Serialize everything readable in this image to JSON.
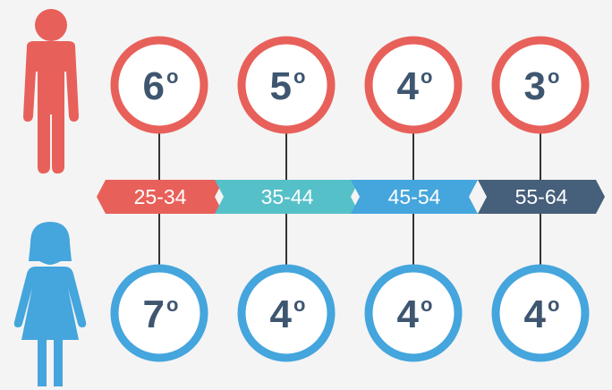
{
  "ordinal": "o",
  "age_groups": [
    "25-34",
    "35-44",
    "45-54",
    "55-64"
  ],
  "men": {
    "ranks": [
      "6",
      "5",
      "4",
      "3"
    ]
  },
  "women": {
    "ranks": [
      "7",
      "4",
      "4",
      "4"
    ]
  }
}
